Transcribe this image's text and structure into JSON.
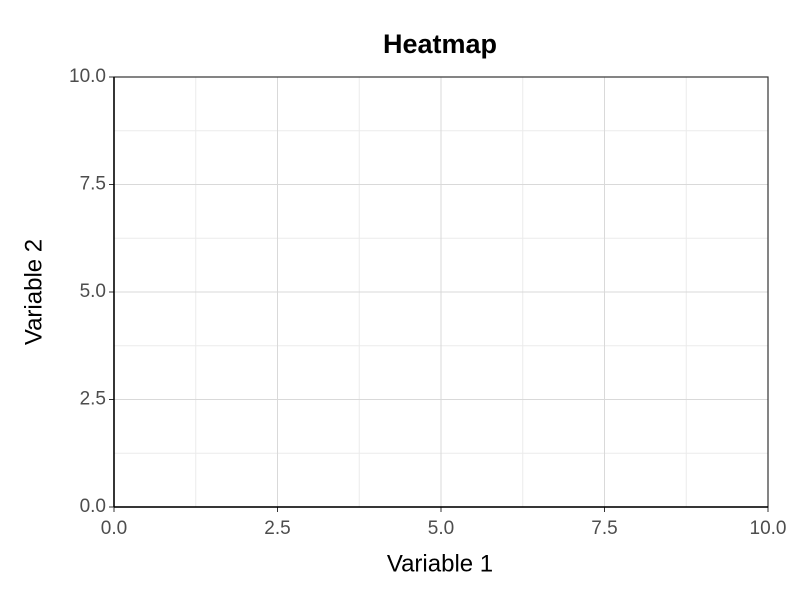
{
  "chart_data": {
    "type": "heatmap",
    "title": "Heatmap",
    "x_label": "Variable 1",
    "y_label": "Variable 2",
    "xlim": [
      0,
      10
    ],
    "ylim": [
      0,
      10
    ],
    "xticks": [
      {
        "value": 0,
        "label": "0.0"
      },
      2.5,
      {
        "value": 5,
        "label": "5.0"
      },
      7.5,
      {
        "value": 10,
        "label": "10.0"
      }
    ],
    "yticks": [
      {
        "value": 0,
        "label": "0.0"
      },
      2.5,
      {
        "value": 5,
        "label": "5.0"
      },
      7.5,
      {
        "value": 10,
        "label": "10.0"
      }
    ],
    "grid": true,
    "minor_grid": true
  }
}
